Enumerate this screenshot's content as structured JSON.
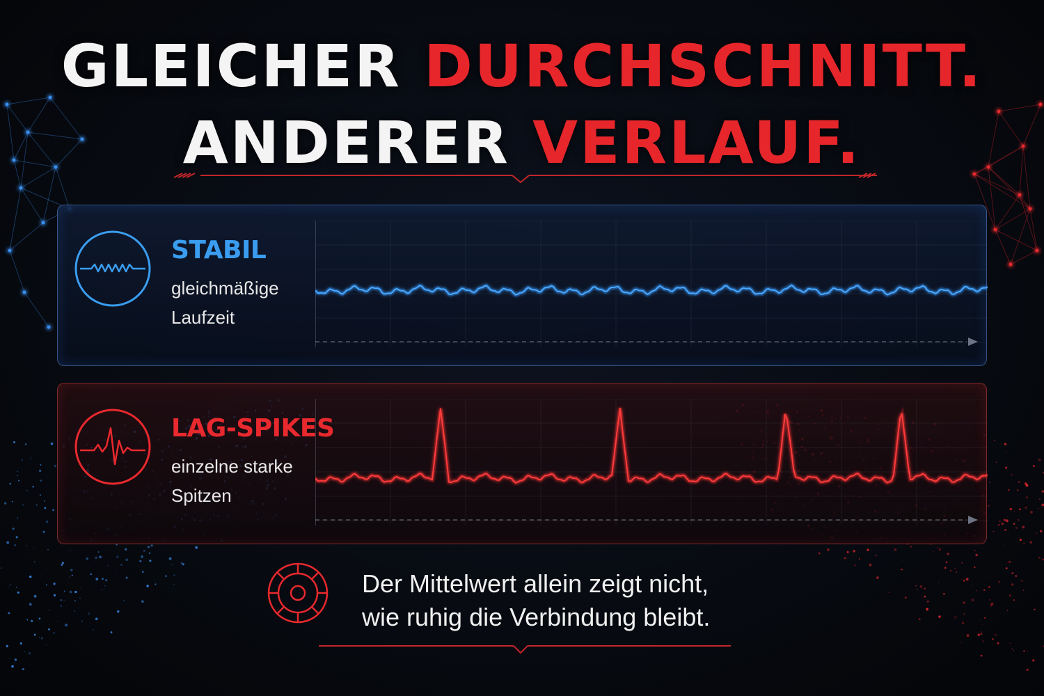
{
  "title": {
    "line1_white": "GLEICHER",
    "line1_red": "DURCHSCHNITT.",
    "line2_white": "ANDERER",
    "line2_red": "VERLAUF."
  },
  "panels": {
    "stable": {
      "title": "STABIL",
      "description_line1": "gleichmäßige",
      "description_line2": "Laufzeit",
      "icon": "sine-wave-icon",
      "color": "#3a9df0"
    },
    "spikes": {
      "title": "LAG-SPIKES",
      "description_line1": "einzelne starke",
      "description_line2": "Spitzen",
      "icon": "heartbeat-pulse-icon",
      "color": "#e8292e"
    }
  },
  "footer": {
    "line1": "Der Mittelwert allein zeigt nicht,",
    "line2": "wie ruhig die Verbindung bleibt.",
    "icon": "target-icon",
    "color": "#e8292e"
  },
  "colors": {
    "background": "#070a10",
    "blue_accent": "#3a9df0",
    "red_accent": "#e6262b",
    "text": "#f0f0f0"
  }
}
